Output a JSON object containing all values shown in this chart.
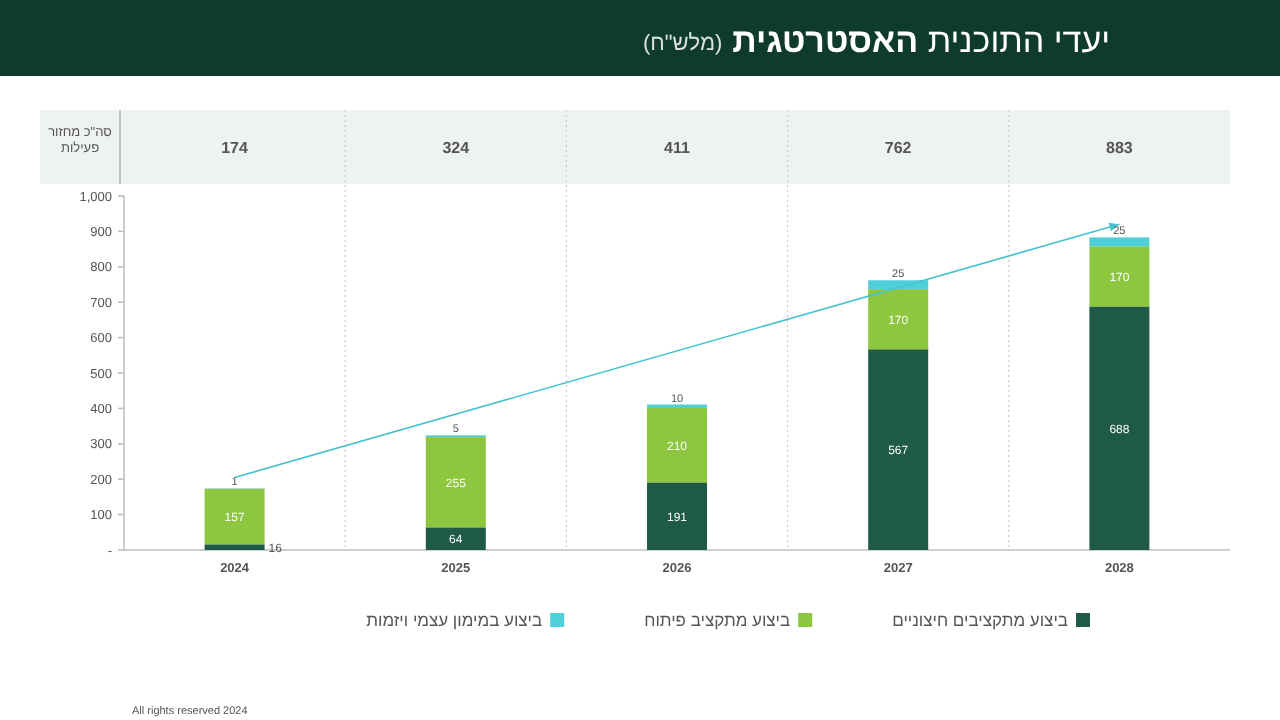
{
  "chart_data": {
    "type": "bar",
    "stacked": true,
    "title": "יעדי התוכנית **האסטרטגית**",
    "subtitle": "(מלש\"ח)",
    "categories": [
      "2024",
      "2025",
      "2026",
      "2027",
      "2028"
    ],
    "series": [
      {
        "name": "ביצוע מתקציבים חיצוניים",
        "color": "#1f5a45",
        "values": [
          16,
          64,
          191,
          567,
          688
        ],
        "value_labels": [
          "16",
          "64",
          "191",
          "567",
          "688"
        ]
      },
      {
        "name": "ביצוע מתקציב פיתוח",
        "color": "#8dc63f",
        "values": [
          157,
          255,
          210,
          170,
          170
        ],
        "value_labels": [
          "157",
          "255",
          "210",
          "170",
          "170"
        ]
      },
      {
        "name": "ביצוע במימון עצמי ויזמות",
        "color": "#4fcfd8",
        "values": [
          1,
          5,
          10,
          25,
          25
        ],
        "value_labels": [
          "1",
          "5",
          "10",
          "25",
          "25"
        ]
      },
      {
        "type": "line",
        "color": "#45c4d0",
        "values": [
          205,
          null,
          null,
          null,
          920
        ]
      }
    ],
    "ylim": [
      0,
      1000
    ],
    "yticks": [
      {
        "value": 0,
        "label": "-"
      },
      100,
      200,
      300,
      400,
      500,
      600,
      700,
      800,
      900,
      {
        "value": 1000,
        "label": "1,000"
      }
    ],
    "legend": "bottom",
    "annotations": [
      "סה\"כ מחזור פעילות",
      "174",
      "324",
      "411",
      "762",
      "883",
      "All rights reserved 2024"
    ]
  }
}
